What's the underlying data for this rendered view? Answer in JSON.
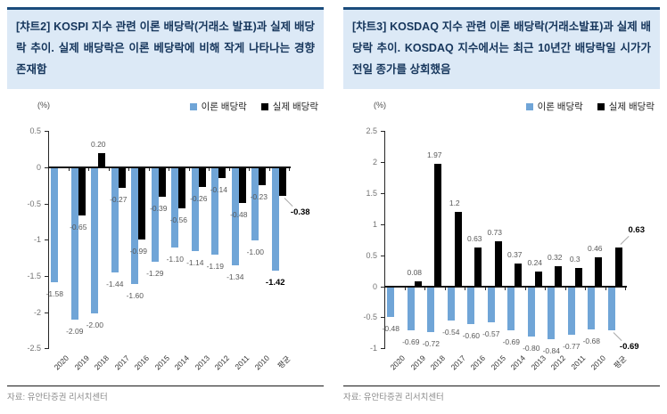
{
  "theme": {
    "bar_blue": "#70A5D7",
    "bar_black": "#000000",
    "header_bg": "#DCE9F6",
    "header_border": "#1B4C7C",
    "header_text": "#16365C"
  },
  "chart_data": [
    {
      "type": "bar",
      "title": "[챠트2] KOSPI 지수 관련 이론 배당락(거래소 발표)과 실제 배당락 추이. 실제 배당락은 이론 베당락에 비해 작게 나타나는 경향 존재함",
      "unit_label": "(%)",
      "source": "자료: 유안타증권 리서치센터",
      "categories": [
        "2020",
        "2019",
        "2018",
        "2017",
        "2016",
        "2015",
        "2014",
        "2013",
        "2012",
        "2011",
        "2010",
        "평균"
      ],
      "series": [
        {
          "name": "이론 배당락",
          "color": "#70A5D7",
          "values": [
            -1.58,
            -2.09,
            -2.0,
            -1.44,
            -1.6,
            -1.29,
            -1.1,
            -1.14,
            -1.19,
            -1.34,
            -1.0,
            -1.42
          ],
          "labels": [
            "-1.58",
            "-2.09",
            "-2.00",
            "-1.44",
            "-1.60",
            "-1.29",
            "-1.10",
            "-1.14",
            "-1.19",
            "-1.34",
            "-1.00",
            "-1.42"
          ],
          "callout_last": false
        },
        {
          "name": "실제 배당락",
          "color": "#000000",
          "values": [
            null,
            -0.65,
            0.2,
            -0.27,
            -0.99,
            -0.39,
            -0.56,
            -0.26,
            -0.14,
            -0.48,
            -0.23,
            -0.38
          ],
          "labels": [
            "",
            "-0.65",
            "0.20",
            "-0.27",
            "-0.99",
            "-0.39",
            "-0.56",
            "-0.26",
            "-0.14",
            "-0.48",
            "-0.23",
            "-0.38"
          ],
          "callout_last": true
        }
      ],
      "ylim": [
        -2.5,
        0.5
      ],
      "yticks": [
        0.5,
        0,
        -0.5,
        -1,
        -1.5,
        -2,
        -2.5
      ],
      "ytick_labels": [
        "0.5",
        "0",
        "-0.5",
        "-1",
        "-1.5",
        "-2",
        "-2.5"
      ],
      "grid": false,
      "legend_position": "top-right"
    },
    {
      "type": "bar",
      "title": "[챠트3] KOSDAQ 지수 관련 이론 배당락(거래소발표)과 실제 배당락 추이. KOSDAQ 지수에서는 최근 10년간 배당락일 시가가 전일 종가를 상회했음",
      "unit_label": "(%)",
      "source": "자료: 유안타증권 리서치센터",
      "categories": [
        "2020",
        "2019",
        "2018",
        "2017",
        "2016",
        "2015",
        "2014",
        "2013",
        "2012",
        "2011",
        "2010",
        "평균"
      ],
      "series": [
        {
          "name": "이론 배당락",
          "color": "#70A5D7",
          "values": [
            -0.48,
            -0.69,
            -0.72,
            -0.54,
            -0.6,
            -0.57,
            -0.69,
            -0.8,
            -0.84,
            -0.77,
            -0.68,
            -0.69
          ],
          "labels": [
            "-0.48",
            "-0.69",
            "-0.72",
            "-0.54",
            "-0.60",
            "-0.57",
            "-0.69",
            "-0.80",
            "-0.84",
            "-0.77",
            "-0.68",
            "-0.69"
          ],
          "callout_last": true
        },
        {
          "name": "실제 배당락",
          "color": "#000000",
          "values": [
            null,
            0.08,
            1.97,
            1.2,
            0.63,
            0.73,
            0.37,
            0.24,
            0.32,
            0.3,
            0.46,
            0.63
          ],
          "labels": [
            "",
            "0.08",
            "1.97",
            "1.2",
            "0.63",
            "0.73",
            "0.37",
            "0.24",
            "0.32",
            "0.3",
            "0.46",
            "0.63"
          ],
          "callout_last": true
        }
      ],
      "ylim": [
        -1,
        2.5
      ],
      "yticks": [
        2.5,
        2,
        1.5,
        1,
        0.5,
        0,
        -0.5,
        -1
      ],
      "ytick_labels": [
        "2.5",
        "2",
        "1.5",
        "1",
        "0.5",
        "0",
        "-0.5",
        "-1"
      ],
      "grid": false,
      "legend_position": "top-right"
    }
  ]
}
